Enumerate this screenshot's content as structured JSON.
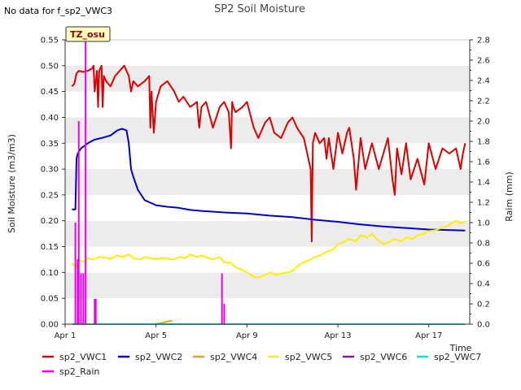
{
  "note": "No data for f_sp2_VWC3",
  "chart_data": {
    "type": "line",
    "title": "SP2 Soil Moisture",
    "xlabel": "Time",
    "ylabel": "Soil Moisture (m3/m3)",
    "y2label": "Raim (mm)",
    "badge": "TZ_osu",
    "xlim": [
      0,
      17.8
    ],
    "ylim": [
      0,
      0.55
    ],
    "y2lim": [
      0,
      2.8
    ],
    "x_ticks": [
      {
        "x": 0,
        "label": "Apr 1"
      },
      {
        "x": 4,
        "label": "Apr 5"
      },
      {
        "x": 8,
        "label": "Apr 9"
      },
      {
        "x": 12,
        "label": "Apr 13"
      },
      {
        "x": 16,
        "label": "Apr 17"
      }
    ],
    "y_ticks": [
      "0.00",
      "0.05",
      "0.10",
      "0.15",
      "0.20",
      "0.25",
      "0.30",
      "0.35",
      "0.40",
      "0.45",
      "0.50",
      "0.55"
    ],
    "y2_ticks": [
      "0.0",
      "0.2",
      "0.4",
      "0.6",
      "0.8",
      "1.0",
      "1.2",
      "1.4",
      "1.6",
      "1.8",
      "2.0",
      "2.2",
      "2.4",
      "2.6",
      "2.8"
    ],
    "grid": "horizontal bands",
    "legend_position": "bottom",
    "series": [
      {
        "name": "sp2_VWC1",
        "color": "#e00000",
        "axis": "left",
        "x": [
          0.3,
          0.4,
          0.5,
          0.6,
          0.8,
          1.0,
          1.2,
          1.25,
          1.3,
          1.4,
          1.45,
          1.5,
          1.6,
          1.65,
          1.7,
          1.8,
          2.0,
          2.2,
          2.4,
          2.6,
          2.8,
          2.9,
          3.0,
          3.2,
          3.5,
          3.7,
          3.75,
          3.8,
          3.9,
          4.0,
          4.2,
          4.5,
          4.8,
          5.0,
          5.2,
          5.5,
          5.8,
          5.9,
          6.0,
          6.2,
          6.5,
          6.8,
          7.0,
          7.2,
          7.3,
          7.35,
          7.4,
          7.5,
          7.8,
          8.0,
          8.3,
          8.5,
          8.8,
          9.0,
          9.2,
          9.5,
          9.8,
          10.0,
          10.2,
          10.5,
          10.8,
          10.85,
          10.9,
          11.0,
          11.2,
          11.4,
          11.5,
          11.6,
          11.8,
          12.0,
          12.2,
          12.4,
          12.5,
          12.7,
          12.8,
          13.0,
          13.2,
          13.5,
          13.8,
          14.0,
          14.2,
          14.4,
          14.5,
          14.6,
          14.8,
          15.0,
          15.2,
          15.5,
          15.8,
          16.0,
          16.3,
          16.6,
          16.9,
          17.2,
          17.4,
          17.5,
          17.6
        ],
        "y": [
          0.46,
          0.465,
          0.485,
          0.49,
          0.488,
          0.49,
          0.495,
          0.5,
          0.45,
          0.49,
          0.42,
          0.49,
          0.5,
          0.42,
          0.48,
          0.47,
          0.46,
          0.48,
          0.49,
          0.5,
          0.48,
          0.45,
          0.47,
          0.46,
          0.47,
          0.48,
          0.38,
          0.45,
          0.37,
          0.43,
          0.46,
          0.47,
          0.45,
          0.43,
          0.44,
          0.42,
          0.43,
          0.38,
          0.42,
          0.43,
          0.38,
          0.42,
          0.43,
          0.41,
          0.34,
          0.43,
          0.42,
          0.41,
          0.42,
          0.43,
          0.38,
          0.36,
          0.39,
          0.4,
          0.37,
          0.36,
          0.39,
          0.4,
          0.38,
          0.36,
          0.3,
          0.16,
          0.35,
          0.37,
          0.35,
          0.36,
          0.32,
          0.36,
          0.3,
          0.37,
          0.33,
          0.37,
          0.38,
          0.32,
          0.26,
          0.36,
          0.3,
          0.35,
          0.3,
          0.33,
          0.36,
          0.28,
          0.25,
          0.34,
          0.29,
          0.35,
          0.28,
          0.32,
          0.27,
          0.35,
          0.3,
          0.34,
          0.33,
          0.34,
          0.3,
          0.33,
          0.35
        ]
      },
      {
        "name": "sp2_VWC2",
        "color": "#0000cc",
        "axis": "left",
        "x": [
          0.3,
          0.45,
          0.5,
          0.55,
          0.7,
          1.0,
          1.3,
          1.6,
          2.0,
          2.3,
          2.5,
          2.7,
          2.8,
          2.9,
          3.0,
          3.2,
          3.5,
          4.0,
          4.5,
          5.0,
          5.5,
          6.0,
          7.0,
          8.0,
          9.0,
          10.0,
          11.0,
          12.0,
          13.0,
          14.0,
          15.0,
          16.0,
          17.0,
          17.6
        ],
        "y": [
          0.222,
          0.222,
          0.32,
          0.33,
          0.34,
          0.35,
          0.357,
          0.36,
          0.365,
          0.375,
          0.378,
          0.375,
          0.35,
          0.3,
          0.285,
          0.26,
          0.24,
          0.23,
          0.227,
          0.225,
          0.221,
          0.219,
          0.216,
          0.214,
          0.21,
          0.207,
          0.202,
          0.198,
          0.193,
          0.189,
          0.186,
          0.183,
          0.182,
          0.181
        ]
      },
      {
        "name": "sp2_VWC4",
        "color": "#ff9900",
        "axis": "left",
        "x": [
          3.9,
          4.2,
          4.5,
          4.7
        ],
        "y": [
          0.0,
          0.002,
          0.005,
          0.007
        ]
      },
      {
        "name": "sp2_VWC5",
        "color": "#ffee00",
        "axis": "left",
        "x": [
          0.3,
          0.5,
          0.6,
          0.8,
          1.0,
          1.2,
          1.5,
          1.8,
          2.0,
          2.3,
          2.5,
          2.8,
          3.0,
          3.3,
          3.5,
          3.8,
          4.0,
          4.3,
          4.5,
          4.8,
          5.0,
          5.3,
          5.5,
          5.8,
          6.0,
          6.3,
          6.5,
          6.8,
          7.0,
          7.3,
          7.5,
          7.8,
          8.0,
          8.3,
          8.5,
          8.8,
          9.0,
          9.3,
          9.5,
          9.8,
          10.0,
          10.3,
          10.5,
          10.8,
          11.0,
          11.3,
          11.5,
          11.8,
          12.0,
          12.3,
          12.5,
          12.8,
          13.0,
          13.3,
          13.5,
          13.7,
          14.0,
          14.3,
          14.5,
          14.8,
          15.0,
          15.3,
          15.5,
          15.8,
          16.0,
          16.3,
          16.5,
          16.8,
          17.0,
          17.2,
          17.4,
          17.6
        ],
        "y": [
          0.118,
          0.11,
          0.125,
          0.12,
          0.128,
          0.125,
          0.13,
          0.128,
          0.127,
          0.133,
          0.13,
          0.135,
          0.128,
          0.125,
          0.13,
          0.127,
          0.126,
          0.128,
          0.127,
          0.125,
          0.13,
          0.128,
          0.135,
          0.13,
          0.133,
          0.128,
          0.125,
          0.13,
          0.12,
          0.118,
          0.11,
          0.105,
          0.1,
          0.092,
          0.09,
          0.095,
          0.1,
          0.095,
          0.098,
          0.1,
          0.103,
          0.115,
          0.12,
          0.125,
          0.13,
          0.135,
          0.14,
          0.145,
          0.155,
          0.16,
          0.165,
          0.16,
          0.172,
          0.168,
          0.175,
          0.165,
          0.155,
          0.16,
          0.165,
          0.16,
          0.168,
          0.165,
          0.172,
          0.175,
          0.18,
          0.182,
          0.185,
          0.19,
          0.195,
          0.2,
          0.195,
          0.198
        ]
      },
      {
        "name": "sp2_VWC6",
        "color": "#9900cc",
        "axis": "left",
        "x": [],
        "y": []
      },
      {
        "name": "sp2_VWC7",
        "color": "#00e0e0",
        "axis": "left",
        "x": [
          0.3,
          17.6
        ],
        "y": [
          0.0,
          0.0
        ]
      },
      {
        "name": "sp2_Rain",
        "color": "#ee00ee",
        "axis": "right",
        "kind": "spikes",
        "x": [
          0.45,
          0.55,
          0.6,
          0.7,
          0.8,
          0.9,
          1.3,
          1.35,
          6.9,
          7.0
        ],
        "y": [
          1.0,
          0.64,
          2.0,
          0.5,
          0.5,
          2.8,
          0.25,
          0.25,
          0.5,
          0.2
        ]
      }
    ]
  }
}
